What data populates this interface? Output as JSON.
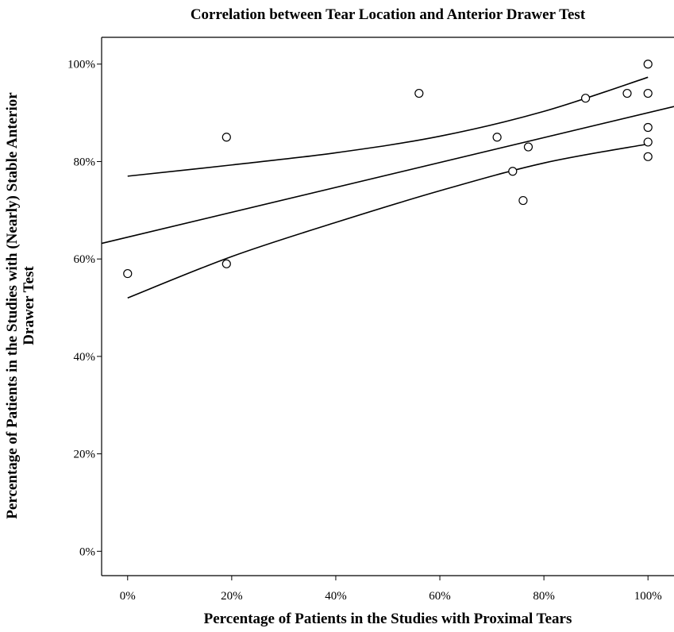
{
  "chart_data": {
    "type": "scatter",
    "title": "Correlation between Tear Location and Anterior Drawer Test",
    "xlabel": "Percentage of Patients in the Studies with Proximal Tears",
    "ylabel": [
      "Percentage of Patients in the Studies with (Nearly) Stable Anterior",
      "Drawer Test"
    ],
    "xlim": [
      -5,
      105
    ],
    "ylim": [
      -5,
      105.5
    ],
    "x_ticks": [
      0,
      20,
      40,
      60,
      80,
      100
    ],
    "x_tick_labels": [
      "0%",
      "20%",
      "40%",
      "60%",
      "80%",
      "100%"
    ],
    "y_ticks": [
      0,
      20,
      40,
      60,
      80,
      100
    ],
    "y_tick_labels": [
      "0%",
      "20%",
      "40%",
      "60%",
      "80%",
      "100%"
    ],
    "grid": false,
    "points": [
      {
        "x": 0,
        "y": 57
      },
      {
        "x": 19,
        "y": 85
      },
      {
        "x": 19,
        "y": 59
      },
      {
        "x": 56,
        "y": 94
      },
      {
        "x": 71,
        "y": 85
      },
      {
        "x": 74,
        "y": 78
      },
      {
        "x": 76,
        "y": 72
      },
      {
        "x": 77,
        "y": 83
      },
      {
        "x": 88,
        "y": 93
      },
      {
        "x": 96,
        "y": 94
      },
      {
        "x": 100,
        "y": 100
      },
      {
        "x": 100,
        "y": 94
      },
      {
        "x": 100,
        "y": 87
      },
      {
        "x": 100,
        "y": 84
      },
      {
        "x": 100,
        "y": 81
      }
    ],
    "fit_line": [
      {
        "x": -5,
        "y": 63.2
      },
      {
        "x": 105,
        "y": 91.3
      }
    ],
    "confidence_band": {
      "upper": [
        {
          "x": 0,
          "y": 77
        },
        {
          "x": 20,
          "y": 79.3
        },
        {
          "x": 40,
          "y": 81.8
        },
        {
          "x": 60,
          "y": 85.2
        },
        {
          "x": 80,
          "y": 90.3
        },
        {
          "x": 100,
          "y": 97.3
        }
      ],
      "lower": [
        {
          "x": 0,
          "y": 52
        },
        {
          "x": 20,
          "y": 60.5
        },
        {
          "x": 40,
          "y": 67.5
        },
        {
          "x": 60,
          "y": 74
        },
        {
          "x": 80,
          "y": 79.7
        },
        {
          "x": 100,
          "y": 83.6
        }
      ]
    }
  }
}
